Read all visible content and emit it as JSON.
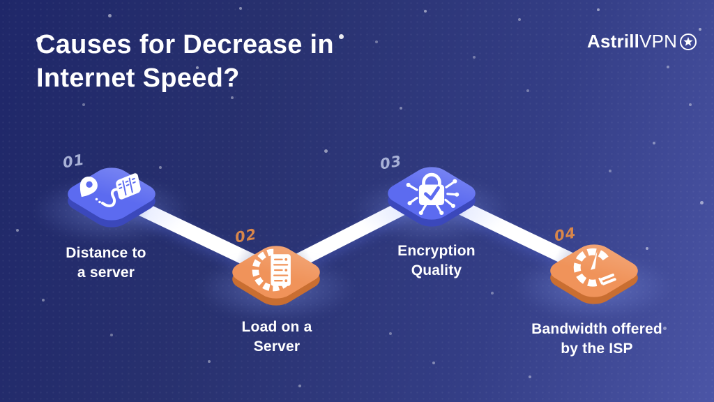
{
  "page": {
    "background_gradient": [
      "#1f2769",
      "#343e86",
      "#4b55a6"
    ],
    "text_color": "#ffffff",
    "ribbon_color": "#ffffff"
  },
  "header": {
    "title_line1": "Causes for Decrease in",
    "title_line2": "Internet Speed?"
  },
  "logo": {
    "name_bold": "Astrill",
    "name_regular": "VPN",
    "star_icon": "circled-star-icon"
  },
  "items": [
    {
      "number": "01",
      "label_line1": "Distance to",
      "label_line2": "a server",
      "icon": "map-pin-route-to-server-icon",
      "tile_color": "#5c6bf0",
      "tile_edge_color": "#3b48bb",
      "number_color": "#a8b1d6"
    },
    {
      "number": "02",
      "label_line1": "Load on a",
      "label_line2": "Server",
      "icon": "server-loading-arc-icon",
      "tile_color": "#f0935a",
      "tile_edge_color": "#c96e31",
      "number_color": "#d8864a"
    },
    {
      "number": "03",
      "label_line1": "Encryption",
      "label_line2": "Quality",
      "icon": "encrypted-lock-circuit-icon",
      "tile_color": "#5c6bf0",
      "tile_edge_color": "#3b48bb",
      "number_color": "#a8b1d6"
    },
    {
      "number": "04",
      "label_line1": "Bandwidth offered",
      "label_line2": "by the ISP",
      "icon": "speedometer-icon",
      "tile_color": "#f0935a",
      "tile_edge_color": "#c96e31",
      "number_color": "#d8864a"
    }
  ]
}
